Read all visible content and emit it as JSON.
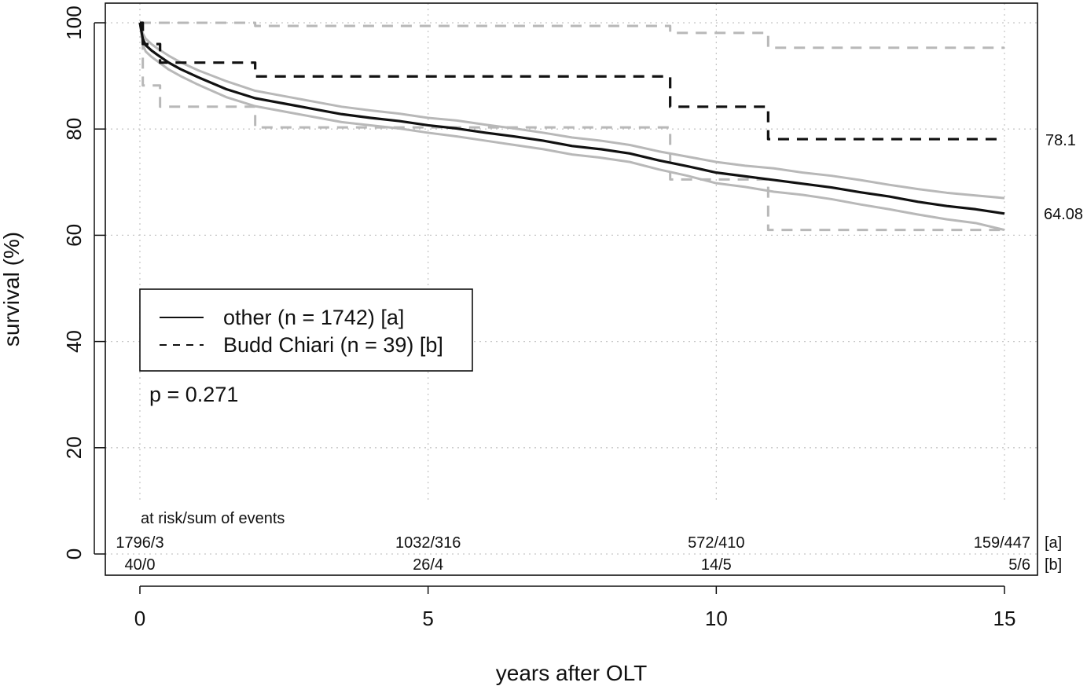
{
  "chart_data": {
    "type": "line",
    "xlabel": "years after OLT",
    "ylabel": "survival (%)",
    "xlim": [
      0,
      15
    ],
    "ylim": [
      0,
      100
    ],
    "x_ticks": [
      "0",
      "5",
      "10",
      "15"
    ],
    "y_ticks": [
      "0",
      "20",
      "40",
      "60",
      "80",
      "100"
    ],
    "grid": true,
    "legend": {
      "position": "center-left",
      "entries": [
        {
          "label": "other (n = 1742) [a]",
          "style": "solid"
        },
        {
          "label": "Budd Chiari (n = 39) [b]",
          "style": "dashed"
        }
      ]
    },
    "p_value_text": "p = 0.271",
    "end_labels": [
      "78.1",
      "64.08"
    ],
    "series": [
      {
        "key": "a",
        "style": "solid",
        "color": "#111111",
        "x": [
          0,
          0.05,
          0.1,
          0.2,
          0.3,
          0.5,
          0.7,
          1.0,
          1.5,
          2.0,
          2.5,
          3.0,
          3.5,
          4.0,
          4.5,
          5.0,
          5.5,
          6.0,
          6.5,
          7.0,
          7.5,
          8.0,
          8.5,
          9.0,
          9.5,
          10.0,
          10.5,
          11.0,
          11.5,
          12.0,
          12.5,
          13.0,
          13.5,
          14.0,
          14.5,
          15.0
        ],
        "y": [
          100,
          97,
          95.8,
          94.8,
          94,
          92.5,
          91.3,
          89.8,
          87.5,
          85.8,
          84.8,
          83.8,
          82.8,
          82.1,
          81.5,
          80.7,
          80.1,
          79.3,
          78.6,
          77.8,
          76.8,
          76.2,
          75.4,
          74.1,
          73.0,
          71.8,
          71.1,
          70.4,
          69.7,
          69.0,
          68.1,
          67.3,
          66.3,
          65.5,
          64.9,
          64.08
        ]
      },
      {
        "key": "a_ci_upper",
        "style": "solid",
        "color": "#b8b8b8",
        "x": [
          0,
          0.05,
          0.1,
          0.2,
          0.3,
          0.5,
          0.7,
          1.0,
          1.5,
          2.0,
          2.5,
          3.0,
          3.5,
          4.0,
          4.5,
          5.0,
          5.5,
          6.0,
          6.5,
          7.0,
          7.5,
          8.0,
          8.5,
          9.0,
          9.5,
          10.0,
          10.5,
          11.0,
          11.5,
          12.0,
          12.5,
          13.0,
          13.5,
          14.0,
          14.5,
          15.0
        ],
        "y": [
          100,
          98,
          97,
          96,
          95.2,
          93.8,
          92.6,
          91.1,
          89,
          87.2,
          86.2,
          85.2,
          84.2,
          83.5,
          82.9,
          82.1,
          81.6,
          80.8,
          80.1,
          79.3,
          78.4,
          77.8,
          77.0,
          75.8,
          74.8,
          73.8,
          73.1,
          72.6,
          71.8,
          71.2,
          70.4,
          69.5,
          68.7,
          68.0,
          67.5,
          67.0
        ]
      },
      {
        "key": "a_ci_lower",
        "style": "solid",
        "color": "#b8b8b8",
        "x": [
          0,
          0.05,
          0.1,
          0.2,
          0.3,
          0.5,
          0.7,
          1.0,
          1.5,
          2.0,
          2.5,
          3.0,
          3.5,
          4.0,
          4.5,
          5.0,
          5.5,
          6.0,
          6.5,
          7.0,
          7.5,
          8.0,
          8.5,
          9.0,
          9.5,
          10.0,
          10.5,
          11.0,
          11.5,
          12.0,
          12.5,
          13.0,
          13.5,
          14.0,
          14.5,
          15.0
        ],
        "y": [
          100,
          96,
          94.6,
          93.6,
          92.8,
          91.2,
          90,
          88.4,
          86,
          84.3,
          83.3,
          82.3,
          81.3,
          80.7,
          80.1,
          79.3,
          78.6,
          77.8,
          77.0,
          76.2,
          75.2,
          74.6,
          73.8,
          72.4,
          71.2,
          69.8,
          69.1,
          68.2,
          67.6,
          66.8,
          65.8,
          64.9,
          63.9,
          63.0,
          62.3,
          61.0
        ]
      },
      {
        "key": "b",
        "style": "dashed-step",
        "color": "#111111",
        "x": [
          0,
          0.05,
          0.35,
          2.0,
          9.2,
          10.9,
          15.0
        ],
        "y": [
          100,
          96,
          92.5,
          89.9,
          84.2,
          78.1,
          78.1
        ]
      },
      {
        "key": "b_ci_upper",
        "style": "dashed-step",
        "color": "#b8b8b8",
        "x": [
          0,
          2.0,
          9.2,
          10.9,
          15.0
        ],
        "y": [
          100,
          99.4,
          98.1,
          95.3,
          95.3
        ]
      },
      {
        "key": "b_ci_lower",
        "style": "dashed-step",
        "color": "#b8b8b8",
        "x": [
          0,
          0.05,
          0.35,
          2.0,
          9.2,
          10.9,
          15.0
        ],
        "y": [
          100,
          88.2,
          84.2,
          80.3,
          70.5,
          61.0,
          61.0
        ]
      }
    ],
    "risk_table": {
      "header": "at risk/sum of events",
      "x": [
        0,
        5,
        10,
        15
      ],
      "rows": [
        {
          "tag": "[a]",
          "values": [
            "1796/3",
            "1032/316",
            "572/410",
            "159/447"
          ]
        },
        {
          "tag": "[b]",
          "values": [
            "40/0",
            "26/4",
            "14/5",
            "5/6"
          ]
        }
      ]
    }
  }
}
